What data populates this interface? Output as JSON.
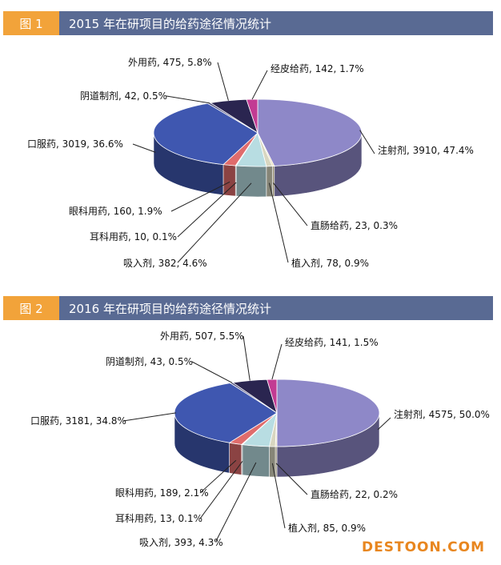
{
  "chart_data": [
    {
      "type": "pie",
      "badge": "图 1",
      "title": "2015 年在研项目的给药途径情况统计",
      "slices": [
        {
          "name": "注射剂",
          "value": 3910,
          "label": "注射剂, 3910, 47.4%",
          "color": "#8e88c8"
        },
        {
          "name": "直肠给药",
          "value": 23,
          "label": "直肠给药, 23, 0.3%",
          "color": "#e8dcb4"
        },
        {
          "name": "植入剂",
          "value": 78,
          "label": "植入剂, 78, 0.9%",
          "color": "#d8d6c0"
        },
        {
          "name": "吸入剂",
          "value": 382,
          "label": "吸入剂, 382, 4.6%",
          "color": "#b8dde2"
        },
        {
          "name": "耳科用药",
          "value": 10,
          "label": "耳科用药, 10, 0.1%",
          "color": "#c9c9c9"
        },
        {
          "name": "眼科用药",
          "value": 160,
          "label": "眼科用药, 160, 1.9%",
          "color": "#e06c6c"
        },
        {
          "name": "口服药",
          "value": 3019,
          "label": "口服药, 3019, 36.6%",
          "color": "#3f57b0"
        },
        {
          "name": "阴道制剂",
          "value": 42,
          "label": "阴道制剂, 42, 0.5%",
          "color": "#4b4b78"
        },
        {
          "name": "外用药",
          "value": 475,
          "label": "外用药, 475, 5.8%",
          "color": "#2a2550"
        },
        {
          "name": "经皮给药",
          "value": 142,
          "label": "经皮给药, 142, 1.7%",
          "color": "#c23b93"
        }
      ]
    },
    {
      "type": "pie",
      "badge": "图 2",
      "title": "2016 年在研项目的给药途径情况统计",
      "slices": [
        {
          "name": "注射剂",
          "value": 4575,
          "label": "注射剂, 4575, 50.0%",
          "color": "#8e88c8"
        },
        {
          "name": "直肠给药",
          "value": 22,
          "label": "直肠给药, 22, 0.2%",
          "color": "#e8dcb4"
        },
        {
          "name": "植入剂",
          "value": 85,
          "label": "植入剂, 85, 0.9%",
          "color": "#d8d6c0"
        },
        {
          "name": "吸入剂",
          "value": 393,
          "label": "吸入剂, 393, 4.3%",
          "color": "#b8dde2"
        },
        {
          "name": "耳科用药",
          "value": 13,
          "label": "耳科用药, 13, 0.1%",
          "color": "#c9c9c9"
        },
        {
          "name": "眼科用药",
          "value": 189,
          "label": "眼科用药, 189, 2.1%",
          "color": "#e06c6c"
        },
        {
          "name": "口服药",
          "value": 3181,
          "label": "口服药, 3181, 34.8%",
          "color": "#3f57b0"
        },
        {
          "name": "阴道制剂",
          "value": 43,
          "label": "阴道制剂, 43, 0.5%",
          "color": "#4b4b78"
        },
        {
          "name": "外用药",
          "value": 507,
          "label": "外用药, 507, 5.5%",
          "color": "#2a2550"
        },
        {
          "name": "经皮给药",
          "value": 141,
          "label": "经皮给药, 141, 1.5%",
          "color": "#c23b93"
        }
      ]
    }
  ],
  "watermark": "DESTOON.COM"
}
